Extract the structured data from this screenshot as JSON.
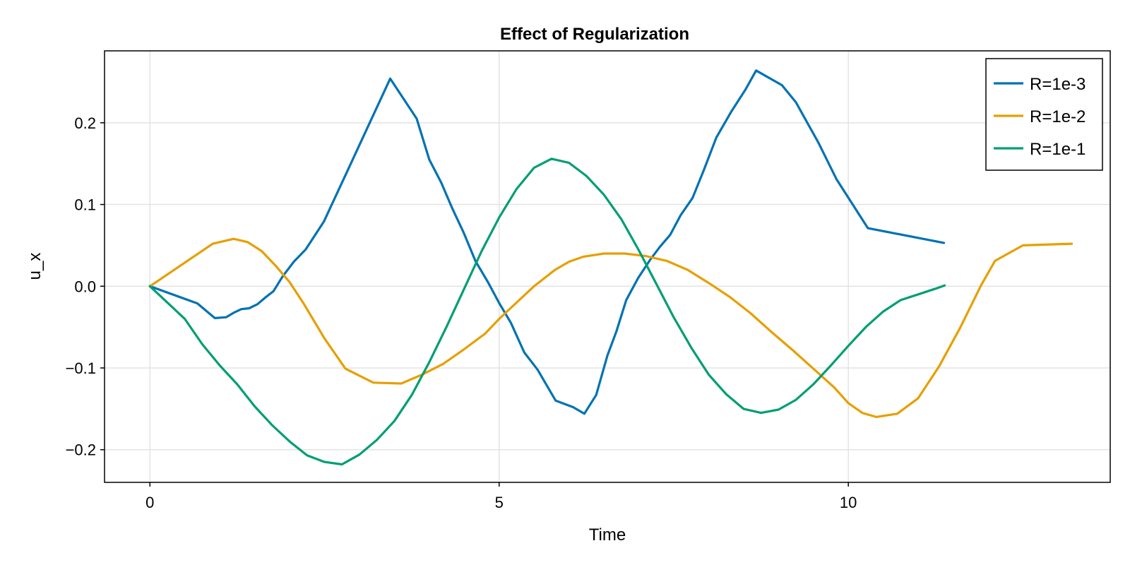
{
  "chart_data": {
    "type": "line",
    "title": "Effect of Regularization",
    "xlabel": "Time",
    "ylabel": "u_x",
    "xlim": [
      -0.65,
      13.75
    ],
    "ylim": [
      -0.24,
      0.288
    ],
    "xticks": [
      0,
      5,
      10
    ],
    "xtick_labels": [
      "0",
      "5",
      "10"
    ],
    "yticks": [
      -0.2,
      -0.1,
      0.0,
      0.1,
      0.2
    ],
    "ytick_labels": [
      "−0.2",
      "−0.1",
      "0.0",
      "0.1",
      "0.2"
    ],
    "grid": true,
    "legend_position": "top-right",
    "series": [
      {
        "name": "R=1e-3",
        "color": "#0072b2",
        "x": [
          0.0,
          0.68,
          0.93,
          1.09,
          1.21,
          1.31,
          1.42,
          1.54,
          1.65,
          1.77,
          1.9,
          2.06,
          2.23,
          2.49,
          2.8,
          3.44,
          3.82,
          4.0,
          4.17,
          4.33,
          4.49,
          4.66,
          4.84,
          5.01,
          5.17,
          5.36,
          5.55,
          5.81,
          6.06,
          6.22,
          6.39,
          6.55,
          6.68,
          6.82,
          6.99,
          7.16,
          7.3,
          7.45,
          7.6,
          7.77,
          7.93,
          8.11,
          8.32,
          8.53,
          8.68,
          9.05,
          9.25,
          9.57,
          9.83,
          10.28,
          11.37
        ],
        "y": [
          0.0,
          -0.021,
          -0.039,
          -0.038,
          -0.032,
          -0.028,
          -0.027,
          -0.022,
          -0.014,
          -0.006,
          0.012,
          0.03,
          0.045,
          0.079,
          0.136,
          0.254,
          0.205,
          0.155,
          0.127,
          0.095,
          0.066,
          0.031,
          0.005,
          -0.022,
          -0.045,
          -0.081,
          -0.102,
          -0.14,
          -0.148,
          -0.156,
          -0.133,
          -0.085,
          -0.055,
          -0.017,
          0.01,
          0.032,
          0.048,
          0.063,
          0.087,
          0.108,
          0.142,
          0.182,
          0.213,
          0.241,
          0.264,
          0.246,
          0.225,
          0.176,
          0.131,
          0.071,
          0.053
        ]
      },
      {
        "name": "R=1e-2",
        "color": "#e69f00",
        "x": [
          0.0,
          0.45,
          0.9,
          1.2,
          1.4,
          1.6,
          1.8,
          2.0,
          2.2,
          2.5,
          2.8,
          3.2,
          3.6,
          3.9,
          4.2,
          4.5,
          4.8,
          5.0,
          5.2,
          5.5,
          5.8,
          6.0,
          6.2,
          6.5,
          6.8,
          7.1,
          7.4,
          7.7,
          8.0,
          8.3,
          8.6,
          8.9,
          9.2,
          9.5,
          9.8,
          10.0,
          10.2,
          10.4,
          10.7,
          11.0,
          11.3,
          11.6,
          11.9,
          12.1,
          12.5,
          13.2
        ],
        "y": [
          0.0,
          0.026,
          0.052,
          0.058,
          0.054,
          0.043,
          0.025,
          0.005,
          -0.021,
          -0.064,
          -0.101,
          -0.118,
          -0.119,
          -0.108,
          -0.095,
          -0.077,
          -0.058,
          -0.04,
          -0.024,
          0.0,
          0.02,
          0.03,
          0.036,
          0.04,
          0.04,
          0.037,
          0.031,
          0.02,
          0.004,
          -0.013,
          -0.033,
          -0.056,
          -0.078,
          -0.101,
          -0.124,
          -0.143,
          -0.155,
          -0.16,
          -0.156,
          -0.137,
          -0.098,
          -0.051,
          0.001,
          0.031,
          0.05,
          0.052
        ]
      },
      {
        "name": "R=1e-1",
        "color": "#009e73",
        "x": [
          0.0,
          0.25,
          0.5,
          0.75,
          1.0,
          1.25,
          1.5,
          1.75,
          2.0,
          2.25,
          2.5,
          2.75,
          3.0,
          3.25,
          3.5,
          3.75,
          4.0,
          4.25,
          4.5,
          4.75,
          5.0,
          5.25,
          5.5,
          5.75,
          6.0,
          6.25,
          6.5,
          6.75,
          7.0,
          7.25,
          7.5,
          7.75,
          8.0,
          8.25,
          8.5,
          8.75,
          9.0,
          9.25,
          9.5,
          9.75,
          10.0,
          10.25,
          10.5,
          10.75,
          11.0,
          11.25,
          11.38
        ],
        "y": [
          0.0,
          -0.02,
          -0.04,
          -0.071,
          -0.097,
          -0.12,
          -0.147,
          -0.17,
          -0.19,
          -0.207,
          -0.215,
          -0.218,
          -0.206,
          -0.188,
          -0.165,
          -0.133,
          -0.093,
          -0.049,
          -0.003,
          0.043,
          0.084,
          0.119,
          0.145,
          0.156,
          0.151,
          0.135,
          0.112,
          0.082,
          0.044,
          0.003,
          -0.038,
          -0.075,
          -0.108,
          -0.132,
          -0.15,
          -0.155,
          -0.151,
          -0.139,
          -0.12,
          -0.097,
          -0.073,
          -0.05,
          -0.031,
          -0.017,
          -0.01,
          -0.003,
          0.001
        ]
      }
    ]
  }
}
